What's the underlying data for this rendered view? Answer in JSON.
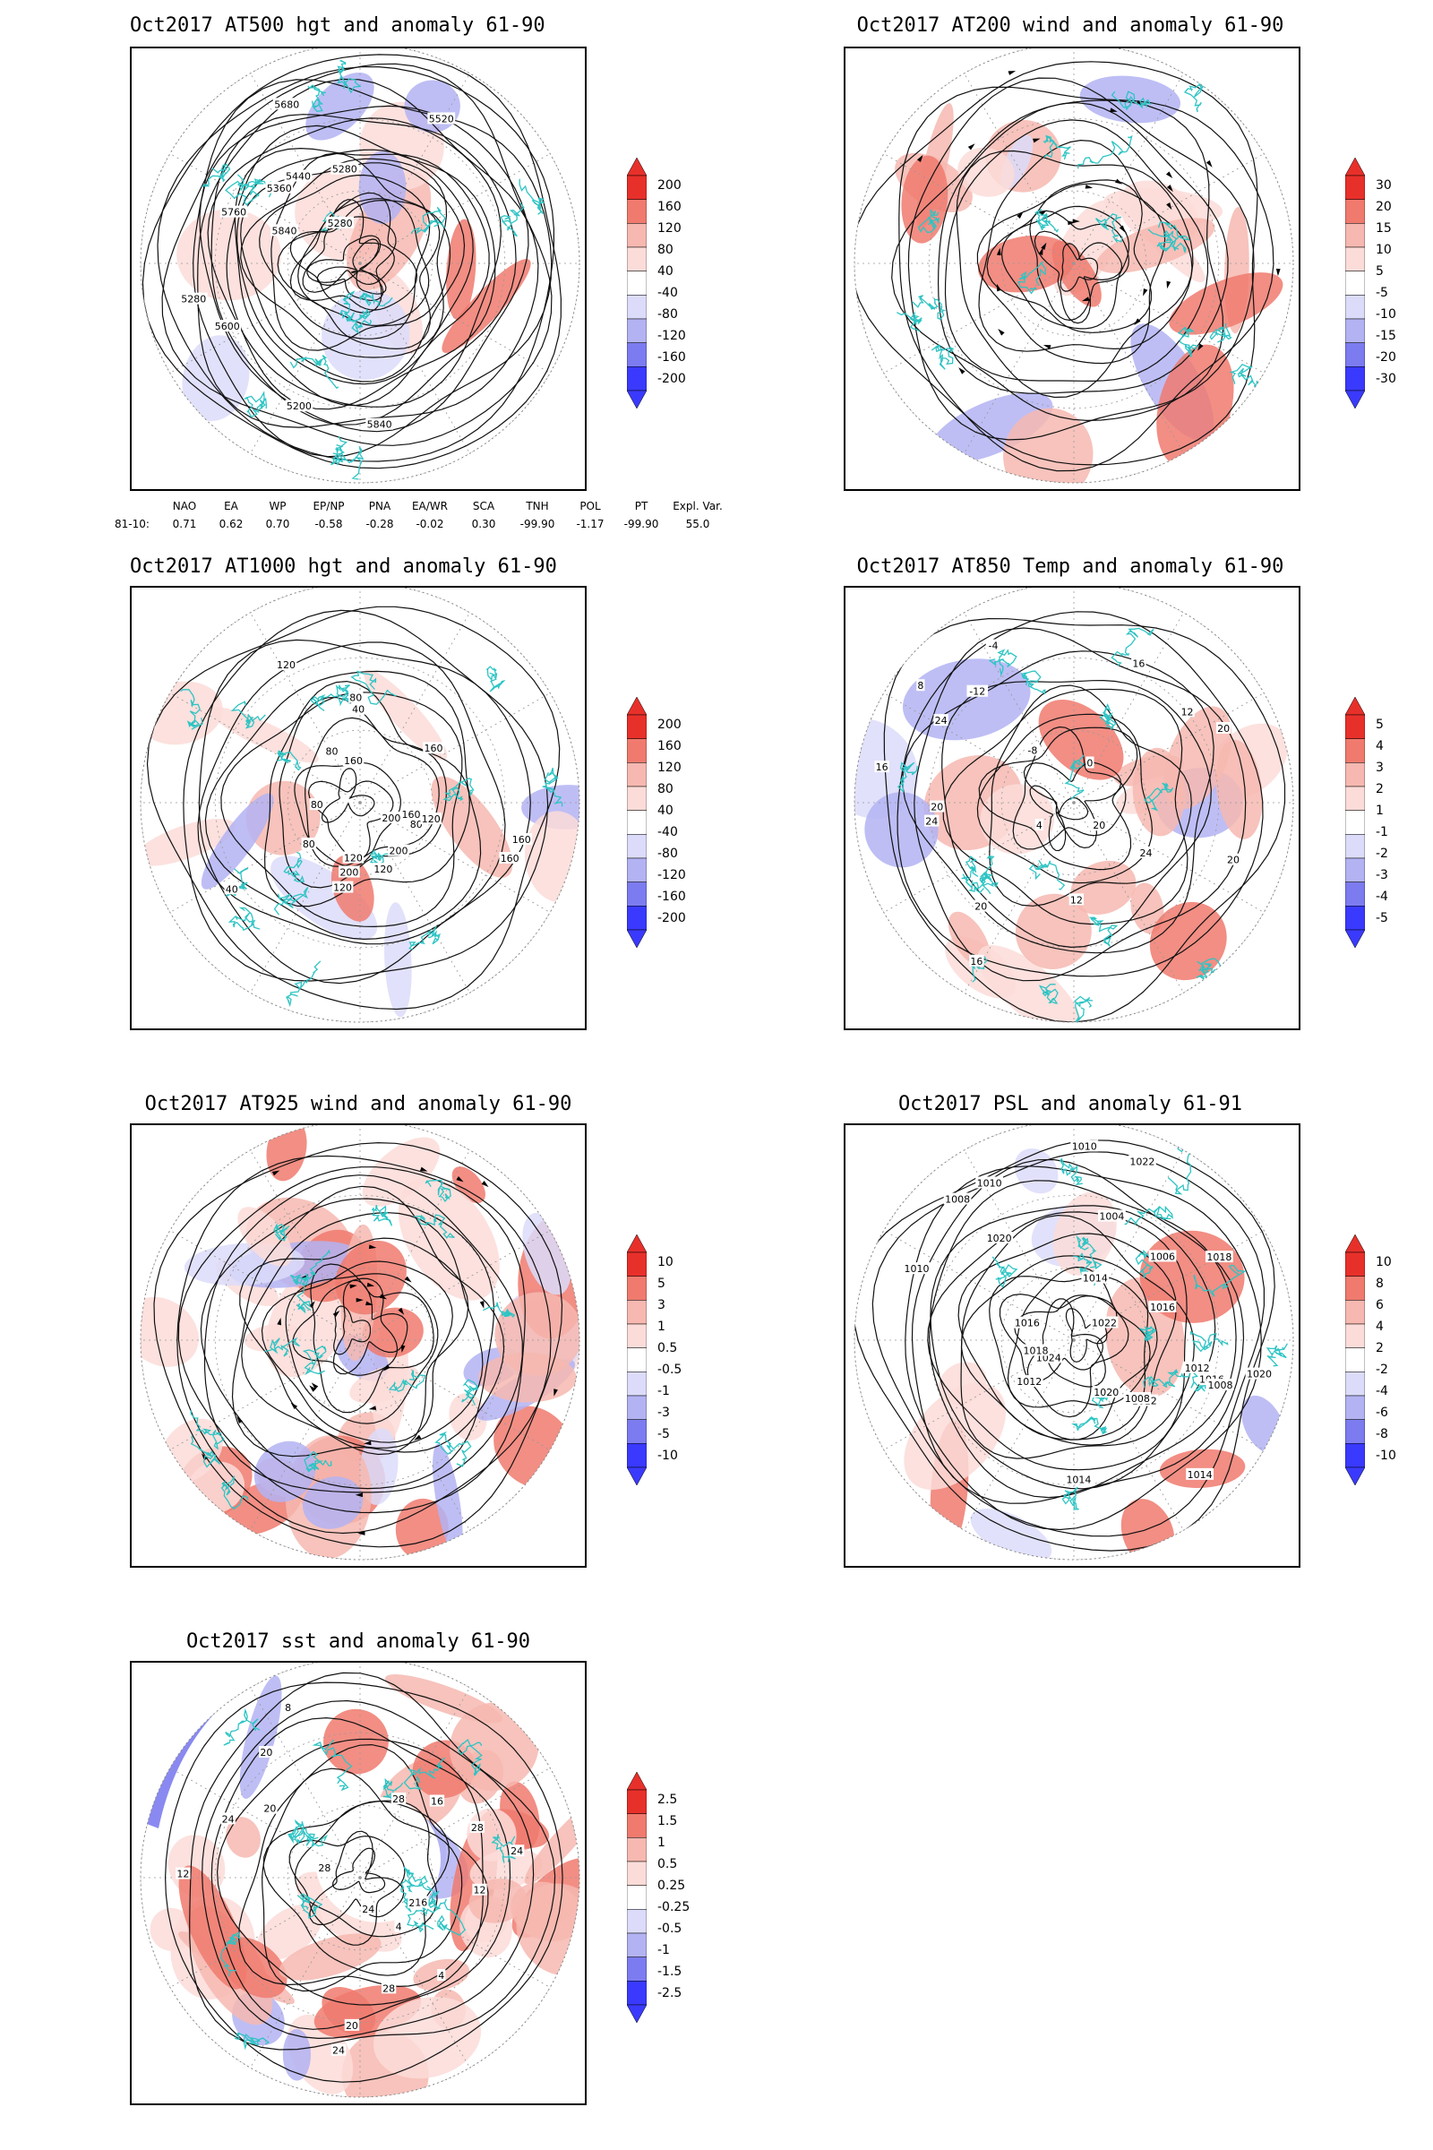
{
  "panels": [
    {
      "id": "p1",
      "title": "Oct2017 AT500 hgt and anomaly 61-90",
      "colorbar": [
        "200",
        "160",
        "120",
        "80",
        "40",
        "-40",
        "-80",
        "-120",
        "-160",
        "-200"
      ],
      "contour_labels": [
        "5840",
        "5280",
        "5280",
        "5280",
        "5200",
        "5360",
        "5440",
        "5520",
        "5600",
        "5680",
        "5760",
        "5840"
      ]
    },
    {
      "id": "p2",
      "title": "Oct2017 AT200 wind and anomaly 61-90",
      "colorbar": [
        "30",
        "20",
        "15",
        "10",
        "5",
        "-5",
        "-10",
        "-15",
        "-20",
        "-30"
      ],
      "contour_labels": []
    },
    {
      "id": "p3",
      "title": "Oct2017 AT1000 hgt and anomaly 61-90",
      "colorbar": [
        "200",
        "160",
        "120",
        "80",
        "40",
        "-40",
        "-80",
        "-120",
        "-160",
        "-200"
      ],
      "contour_labels": [
        "80",
        "120",
        "160",
        "200",
        "160",
        "40",
        "80",
        "120",
        "120",
        "40",
        "200",
        "200",
        "80",
        "160",
        "80",
        "120",
        "160",
        "160",
        "80",
        "120"
      ]
    },
    {
      "id": "p4",
      "title": "Oct2017 AT850 Temp and anomaly 61-90",
      "colorbar": [
        "5",
        "4",
        "3",
        "2",
        "1",
        "-1",
        "-2",
        "-3",
        "-4",
        "-5"
      ],
      "contour_labels": [
        "16",
        "16",
        "12",
        "20",
        "16",
        "-12",
        "-8",
        "-4",
        "20",
        "20",
        "24",
        "24",
        "12",
        "8",
        "24",
        "20",
        "20",
        "4",
        "0"
      ]
    },
    {
      "id": "p5",
      "title": "Oct2017 AT925 wind and anomaly 61-90",
      "colorbar": [
        "10",
        "5",
        "3",
        "1",
        "0.5",
        "-0.5",
        "-1",
        "-3",
        "-5",
        "-10"
      ],
      "contour_labels": []
    },
    {
      "id": "p6",
      "title": "Oct2017 PSL and anomaly 61-91",
      "colorbar": [
        "10",
        "8",
        "6",
        "4",
        "2",
        "-2",
        "-4",
        "-6",
        "-8",
        "-10"
      ],
      "contour_labels": [
        "1010",
        "1014",
        "1016",
        "1022",
        "1018",
        "1020",
        "1024",
        "1020",
        "1008",
        "1006",
        "1004",
        "1012",
        "1010",
        "1016",
        "1018",
        "1014",
        "1008",
        "1020",
        "1022",
        "1012",
        "1016",
        "1014",
        "1012",
        "1010",
        "1008"
      ]
    },
    {
      "id": "p7",
      "title": "Oct2017 sst and anomaly 61-90",
      "colorbar": [
        "2.5",
        "1.5",
        "1",
        "0.5",
        "0.25",
        "-0.25",
        "-0.5",
        "-1",
        "-1.5",
        "-2.5"
      ],
      "contour_labels": [
        "28",
        "28",
        "24",
        "20",
        "16",
        "12",
        "8",
        "4",
        "24",
        "20",
        "16",
        "12",
        "28",
        "24",
        "20",
        "28",
        "28",
        "24",
        "4"
      ]
    }
  ],
  "teleconnections": {
    "headers": [
      "NAO",
      "EA",
      "WP",
      "EP/NP",
      "PNA",
      "EA/WR",
      "SCA",
      "TNH",
      "POL",
      "PT",
      "Expl. Var."
    ],
    "row_label": "81-10:",
    "values": [
      "0.71",
      "0.62",
      "0.70",
      "-0.58",
      "-0.28",
      "-0.02",
      "0.30",
      "-99.90",
      "-1.17",
      "-99.90",
      "55.0"
    ]
  },
  "colors": {
    "frame": "#000000",
    "coast": "#2ec4c4",
    "red_strong": "#e8302a",
    "red_mid": "#f07a6e",
    "red_light": "#f6b8b0",
    "red_faint": "#fbdcd8",
    "blue_faint": "#dcdcfa",
    "blue_light": "#b3b3f3",
    "blue_mid": "#7c7cf0",
    "blue_strong": "#3a3aff"
  }
}
